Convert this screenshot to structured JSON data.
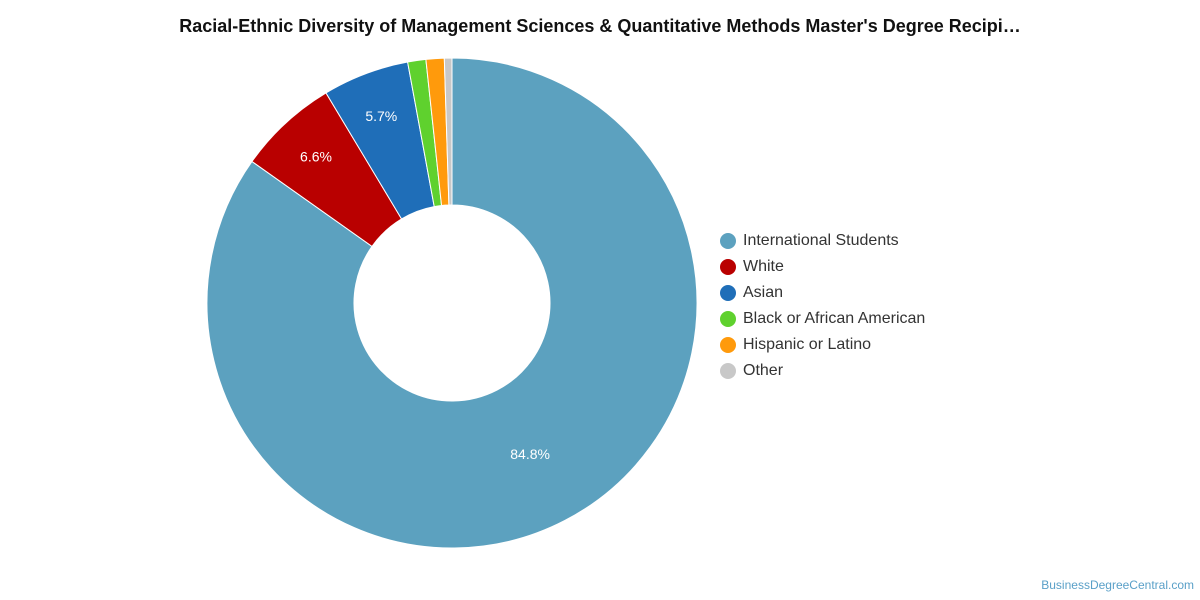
{
  "chart_data": {
    "type": "pie",
    "title": "Racial-Ethnic Diversity of Management Sciences & Quantitative Methods Master's Degree Recipi…",
    "categories": [
      "International Students",
      "White",
      "Asian",
      "Black or African American",
      "Hispanic or Latino",
      "Other"
    ],
    "values": [
      84.8,
      6.6,
      5.7,
      1.2,
      1.2,
      0.5
    ],
    "data_labels": [
      "84.8%",
      "6.6%",
      "5.7%",
      "",
      "",
      ""
    ],
    "colors": [
      "#5ca1bf",
      "#b90000",
      "#1f6eb8",
      "#5fd12e",
      "#ff9a0c",
      "#c8c8c8"
    ],
    "legend": "right",
    "donut": true
  },
  "credit": "BusinessDegreeCentral.com"
}
